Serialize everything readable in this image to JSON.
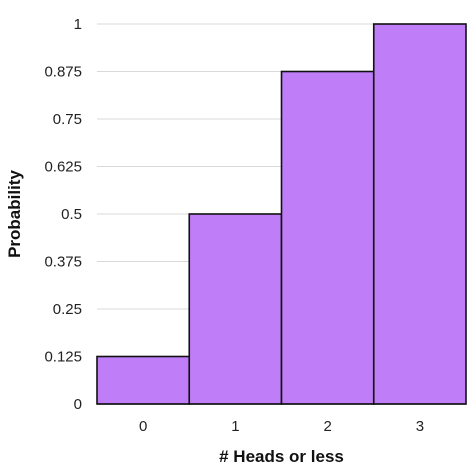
{
  "chart_data": {
    "type": "bar",
    "title": "",
    "xlabel": "# Heads or less",
    "ylabel": "Probability",
    "categories": [
      "0",
      "1",
      "2",
      "3"
    ],
    "values": [
      0.125,
      0.5,
      0.875,
      1
    ],
    "ylim": [
      0,
      1
    ],
    "yticks": [
      "0",
      "0.125",
      "0.25",
      "0.375",
      "0.5",
      "0.625",
      "0.75",
      "0.875",
      "1"
    ],
    "grid": true,
    "legend": "none",
    "bar_color": "#bf7df7",
    "bar_edge_color": "#111111",
    "grid_color": "#d9d9d9"
  }
}
